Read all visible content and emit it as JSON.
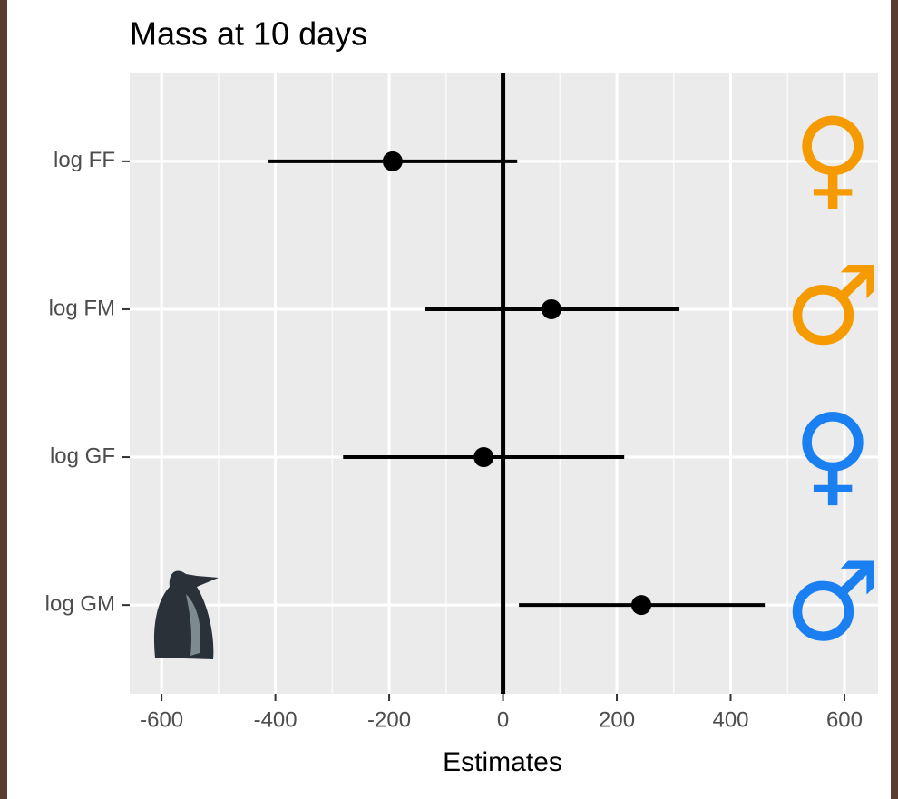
{
  "chart_data": {
    "type": "forest",
    "title": "Mass at 10 days",
    "x_label": "Estimates",
    "categories": [
      "log FF",
      "log FM",
      "log GF",
      "log GM"
    ],
    "series": [
      {
        "color": "#000000",
        "values": [
          -194,
          85,
          -34,
          243
        ],
        "lower": [
          -412,
          -138,
          -281,
          28
        ],
        "upper": [
          25,
          310,
          213,
          460
        ]
      }
    ],
    "xlim": [
      -656,
      659
    ],
    "xticks": [
      -600,
      -400,
      -200,
      0,
      200,
      400,
      600
    ],
    "reference_line": 0,
    "grid": true,
    "annotations": [
      {
        "text": "♀",
        "color": "#f59b00"
      },
      {
        "text": "♂",
        "color": "#f59b00"
      },
      {
        "text": "♀",
        "color": "#1a7ff0"
      },
      {
        "text": "♂",
        "color": "#1a7ff0"
      }
    ]
  }
}
